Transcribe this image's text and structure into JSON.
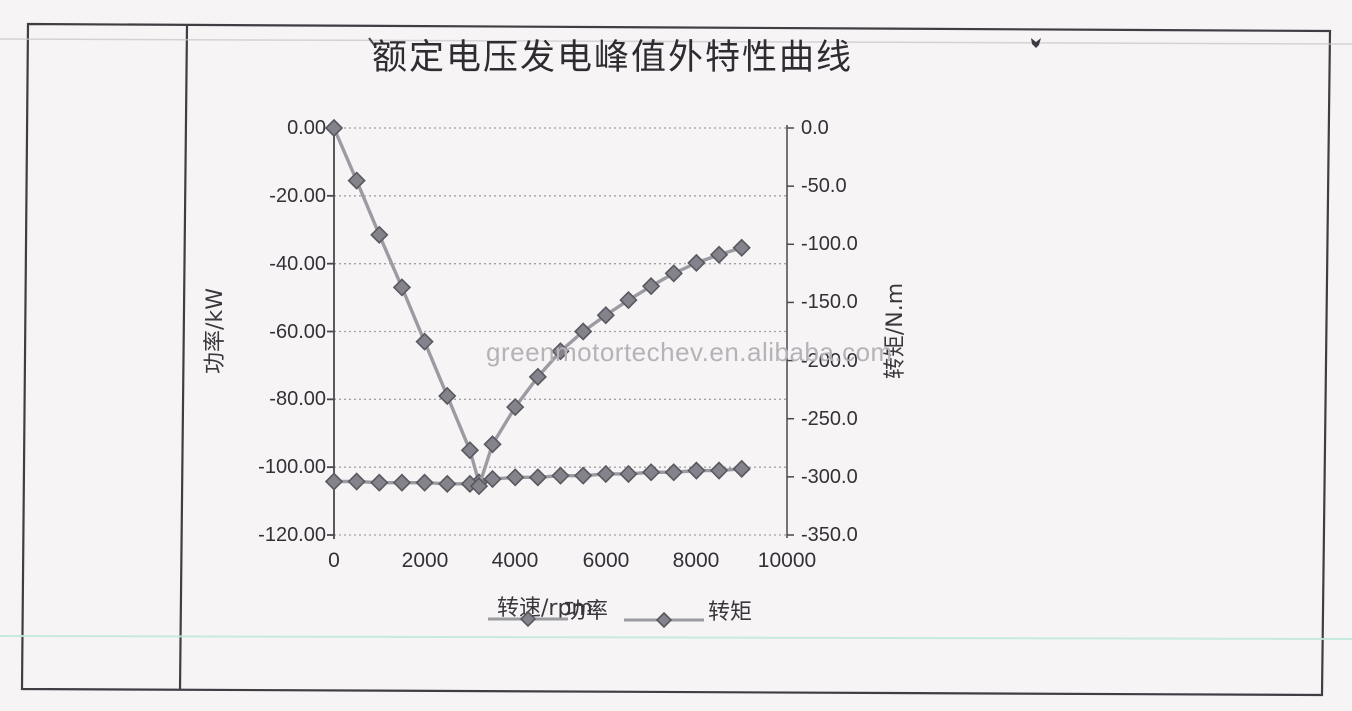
{
  "page": {
    "kind": "scanned datasheet table cell with embedded chart",
    "watermark": "greenmotortechev.en.alibaba.com"
  },
  "chart_data": {
    "type": "line",
    "title": "额定电压发电峰值外特性曲线",
    "xlabel": "转速/rpm",
    "ylabel_left": "功率/kW",
    "ylabel_right": "转矩/N.m",
    "legend_position": "bottom",
    "grid": "horizontal dotted",
    "legend": [
      {
        "label": "功率"
      },
      {
        "label": "转矩"
      }
    ],
    "x_rpm": [
      0,
      500,
      1000,
      1500,
      2000,
      2500,
      3000,
      3200,
      3500,
      4000,
      4500,
      5000,
      5500,
      6000,
      6500,
      7000,
      7500,
      8000,
      8500,
      9000
    ],
    "series": [
      {
        "name": "功率",
        "axis": "left",
        "unit": "kW",
        "values": [
          0,
          -15.5,
          -31.5,
          -47,
          -63,
          -79,
          -95,
          -104.5,
          -103.5,
          -103,
          -103,
          -102.5,
          -102.5,
          -102,
          -102,
          -101.5,
          -101.5,
          -101,
          -101,
          -100.5
        ]
      },
      {
        "name": "转矩",
        "axis": "right",
        "unit": "N.m",
        "values": [
          -304,
          -304,
          -305,
          -305,
          -305,
          -306,
          -306,
          -308,
          -272,
          -240,
          -214,
          -192,
          -175,
          -161,
          -148,
          -136,
          -125,
          -116,
          -109,
          -103
        ]
      }
    ],
    "xaxis": {
      "min": 0,
      "max": 10000,
      "tick_labels": [
        "0",
        "2000",
        "4000",
        "6000",
        "8000",
        "10000"
      ]
    },
    "yaxis_left": {
      "min": -120,
      "max": 0,
      "tick_labels": [
        "0.00",
        "-20.00",
        "-40.00",
        "-60.00",
        "-80.00",
        "-100.00",
        "-120.00"
      ]
    },
    "yaxis_right": {
      "min": -350,
      "max": 0,
      "tick_labels": [
        "0.0",
        "-50.0",
        "-100.0",
        "-150.0",
        "-200.0",
        "-250.0",
        "-300.0",
        "-350.0"
      ]
    },
    "marker": "diamond",
    "style": {
      "curve": "#9c9ba1",
      "marker_fill": "#84838b",
      "marker_stroke": "#59585f",
      "grid": "#a3a1a8",
      "axis": "#4a484e",
      "frame": "#3f3e43",
      "text": "#333136",
      "watermark": "#b5b3b7",
      "scan_background": "#f6f4f5",
      "scan_line_cyan": "#c2e9dd"
    }
  }
}
